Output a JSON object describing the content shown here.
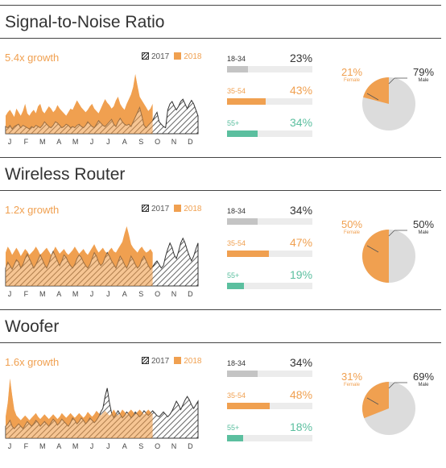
{
  "months": [
    "J",
    "F",
    "M",
    "A",
    "M",
    "J",
    "J",
    "A",
    "S",
    "O",
    "N",
    "D"
  ],
  "legend": {
    "y2017": "2017",
    "y2018": "2018"
  },
  "colors": {
    "accent": "#f0a050",
    "teal": "#5bbf9f",
    "gray": "#c4c4c4",
    "hatch": "#333333"
  },
  "chart_data": [
    {
      "type": "area",
      "title": "Signal-to-Noise Ratio",
      "subtitle": "5.4x growth",
      "series": [
        {
          "name": "2017",
          "values": [
            0.12,
            0.1,
            0.14,
            0.08,
            0.12,
            0.14,
            0.16,
            0.1,
            0.14,
            0.12,
            0.1,
            0.08,
            0.12,
            0.1,
            0.14,
            0.12,
            0.1,
            0.14,
            0.2,
            0.16,
            0.12,
            0.1,
            0.14,
            0.2,
            0.18,
            0.14,
            0.1,
            0.12,
            0.16,
            0.14,
            0.1,
            0.12,
            0.1,
            0.14,
            0.16,
            0.12,
            0.1,
            0.14,
            0.2,
            0.16,
            0.12,
            0.1,
            0.16,
            0.22,
            0.18,
            0.14,
            0.12,
            0.16,
            0.2,
            0.24,
            0.16,
            0.12,
            0.2,
            0.26,
            0.2,
            0.16,
            0.14,
            0.16,
            0.12,
            0.2,
            0.28,
            0.36,
            0.44,
            0.3,
            0.14,
            0.1,
            0.14,
            0.18,
            0.22,
            0.3,
            0.36,
            0.2,
            0.16,
            0.12,
            0.1,
            0.4,
            0.5,
            0.54,
            0.46,
            0.4,
            0.46,
            0.54,
            0.58,
            0.5,
            0.42,
            0.5,
            0.56,
            0.5,
            0.4,
            0.3
          ]
        },
        {
          "name": "2018",
          "values": [
            0.3,
            0.36,
            0.4,
            0.34,
            0.28,
            0.42,
            0.36,
            0.3,
            0.38,
            0.5,
            0.34,
            0.3,
            0.36,
            0.4,
            0.34,
            0.46,
            0.5,
            0.38,
            0.34,
            0.4,
            0.46,
            0.42,
            0.36,
            0.4,
            0.48,
            0.42,
            0.38,
            0.34,
            0.3,
            0.36,
            0.42,
            0.4,
            0.48,
            0.56,
            0.5,
            0.44,
            0.4,
            0.36,
            0.4,
            0.46,
            0.5,
            0.42,
            0.38,
            0.34,
            0.42,
            0.5,
            0.58,
            0.52,
            0.48,
            0.42,
            0.46,
            0.56,
            0.62,
            0.5,
            0.44,
            0.4,
            0.5,
            0.58,
            0.66,
            0.78,
            1.0,
            0.8,
            0.62,
            0.56,
            0.5,
            0.44,
            0.38,
            0.42,
            0.5,
            0.56,
            0.48,
            0.42,
            0.38,
            0.44,
            0.52,
            0.48,
            0.42,
            0.4,
            0.46,
            0.5,
            0.54,
            0.48,
            0.44,
            0.42,
            0.38,
            0.42,
            0.36,
            0.4,
            0.46,
            0.4
          ]
        }
      ],
      "age_groups": [
        {
          "label": "18-34",
          "value": "23%",
          "fraction": 0.23,
          "color": "#c4c4c4",
          "text_color": "#333333"
        },
        {
          "label": "35-54",
          "value": "43%",
          "fraction": 0.43,
          "color": "#f0a050",
          "text_color": "#f0a050"
        },
        {
          "label": "55+",
          "value": "34%",
          "fraction": 0.34,
          "color": "#5bbf9f",
          "text_color": "#5bbf9f"
        }
      ],
      "gender": {
        "female_pct": "21%",
        "female_label": "Female",
        "female_fraction": 0.21,
        "male_pct": "79%",
        "male_label": "Male"
      }
    },
    {
      "type": "area",
      "title": "Wireless Router",
      "subtitle": "1.2x growth",
      "series": [
        {
          "name": "2017",
          "values": [
            0.3,
            0.4,
            0.34,
            0.28,
            0.36,
            0.44,
            0.4,
            0.3,
            0.36,
            0.46,
            0.54,
            0.46,
            0.38,
            0.3,
            0.36,
            0.44,
            0.52,
            0.44,
            0.36,
            0.3,
            0.38,
            0.5,
            0.58,
            0.5,
            0.42,
            0.34,
            0.42,
            0.52,
            0.48,
            0.4,
            0.34,
            0.3,
            0.36,
            0.46,
            0.52,
            0.48,
            0.4,
            0.34,
            0.3,
            0.36,
            0.46,
            0.56,
            0.5,
            0.4,
            0.34,
            0.38,
            0.48,
            0.56,
            0.5,
            0.42,
            0.36,
            0.3,
            0.4,
            0.5,
            0.44,
            0.36,
            0.3,
            0.38,
            0.5,
            0.44,
            0.36,
            0.3,
            0.34,
            0.44,
            0.5,
            0.42,
            0.34,
            0.28,
            0.32,
            0.38,
            0.42,
            0.36,
            0.3,
            0.34,
            0.5,
            0.62,
            0.72,
            0.64,
            0.52,
            0.46,
            0.58,
            0.72,
            0.8,
            0.72,
            0.6,
            0.5,
            0.42,
            0.5,
            0.62,
            0.72
          ]
        },
        {
          "name": "2018",
          "values": [
            0.56,
            0.66,
            0.6,
            0.52,
            0.58,
            0.64,
            0.58,
            0.5,
            0.56,
            0.62,
            0.58,
            0.52,
            0.56,
            0.6,
            0.66,
            0.6,
            0.52,
            0.56,
            0.6,
            0.64,
            0.58,
            0.52,
            0.58,
            0.66,
            0.6,
            0.54,
            0.58,
            0.62,
            0.56,
            0.52,
            0.56,
            0.6,
            0.66,
            0.6,
            0.54,
            0.58,
            0.62,
            0.56,
            0.52,
            0.58,
            0.64,
            0.7,
            0.62,
            0.56,
            0.6,
            0.64,
            0.58,
            0.54,
            0.6,
            0.64,
            0.58,
            0.56,
            0.62,
            0.68,
            0.74,
            0.88,
            1.0,
            0.86,
            0.7,
            0.64,
            0.6,
            0.56,
            0.62,
            0.66,
            0.6,
            0.56,
            0.58,
            0.62,
            0.56,
            0.52,
            0.56,
            0.6,
            0.56,
            0.52,
            0.56,
            0.52,
            0.48,
            0.52,
            0.56,
            0.5,
            0.46,
            0.5,
            0.54,
            0.5,
            0.46,
            0.5,
            0.56,
            0.52,
            0.48,
            0.52
          ]
        }
      ],
      "age_groups": [
        {
          "label": "18-34",
          "value": "34%",
          "fraction": 0.34,
          "color": "#c4c4c4",
          "text_color": "#333333"
        },
        {
          "label": "35-54",
          "value": "47%",
          "fraction": 0.47,
          "color": "#f0a050",
          "text_color": "#f0a050"
        },
        {
          "label": "55+",
          "value": "19%",
          "fraction": 0.19,
          "color": "#5bbf9f",
          "text_color": "#5bbf9f"
        }
      ],
      "gender": {
        "female_pct": "50%",
        "female_label": "Female",
        "female_fraction": 0.5,
        "male_pct": "50%",
        "male_label": "Male"
      }
    },
    {
      "type": "area",
      "title": "Woofer",
      "subtitle": "1.6x growth",
      "series": [
        {
          "name": "2017",
          "values": [
            0.2,
            0.24,
            0.3,
            0.2,
            0.16,
            0.2,
            0.24,
            0.2,
            0.16,
            0.22,
            0.28,
            0.24,
            0.2,
            0.24,
            0.3,
            0.26,
            0.2,
            0.24,
            0.28,
            0.24,
            0.2,
            0.26,
            0.32,
            0.28,
            0.22,
            0.26,
            0.32,
            0.28,
            0.24,
            0.2,
            0.26,
            0.34,
            0.3,
            0.24,
            0.28,
            0.34,
            0.3,
            0.24,
            0.28,
            0.34,
            0.3,
            0.26,
            0.3,
            0.36,
            0.44,
            0.5,
            0.7,
            0.84,
            0.6,
            0.42,
            0.34,
            0.4,
            0.46,
            0.4,
            0.34,
            0.38,
            0.44,
            0.4,
            0.34,
            0.38,
            0.44,
            0.4,
            0.36,
            0.4,
            0.46,
            0.42,
            0.38,
            0.42,
            0.46,
            0.42,
            0.38,
            0.36,
            0.4,
            0.44,
            0.4,
            0.36,
            0.4,
            0.46,
            0.54,
            0.62,
            0.56,
            0.48,
            0.56,
            0.64,
            0.7,
            0.64,
            0.56,
            0.5,
            0.56,
            0.62
          ]
        },
        {
          "name": "2018",
          "values": [
            0.36,
            0.6,
            1.0,
            0.72,
            0.48,
            0.38,
            0.34,
            0.3,
            0.34,
            0.38,
            0.34,
            0.3,
            0.34,
            0.38,
            0.42,
            0.36,
            0.32,
            0.36,
            0.4,
            0.36,
            0.32,
            0.36,
            0.4,
            0.36,
            0.32,
            0.36,
            0.42,
            0.38,
            0.34,
            0.38,
            0.42,
            0.38,
            0.34,
            0.38,
            0.42,
            0.38,
            0.34,
            0.38,
            0.44,
            0.4,
            0.36,
            0.4,
            0.46,
            0.42,
            0.38,
            0.42,
            0.46,
            0.42,
            0.38,
            0.42,
            0.48,
            0.42,
            0.38,
            0.42,
            0.48,
            0.44,
            0.4,
            0.44,
            0.48,
            0.44,
            0.4,
            0.44,
            0.48,
            0.44,
            0.4,
            0.44,
            0.48,
            0.44,
            0.4,
            0.42,
            0.46,
            0.42,
            0.38,
            0.42,
            0.46,
            0.42,
            0.38,
            0.42,
            0.44,
            0.4,
            0.38,
            0.4,
            0.44,
            0.42,
            0.38,
            0.4,
            0.44,
            0.4,
            0.38,
            0.4
          ]
        }
      ],
      "age_groups": [
        {
          "label": "18-34",
          "value": "34%",
          "fraction": 0.34,
          "color": "#c4c4c4",
          "text_color": "#333333"
        },
        {
          "label": "35-54",
          "value": "48%",
          "fraction": 0.48,
          "color": "#f0a050",
          "text_color": "#f0a050"
        },
        {
          "label": "55+",
          "value": "18%",
          "fraction": 0.18,
          "color": "#5bbf9f",
          "text_color": "#5bbf9f"
        }
      ],
      "gender": {
        "female_pct": "31%",
        "female_label": "Female",
        "female_fraction": 0.31,
        "male_pct": "69%",
        "male_label": "Male"
      }
    }
  ]
}
